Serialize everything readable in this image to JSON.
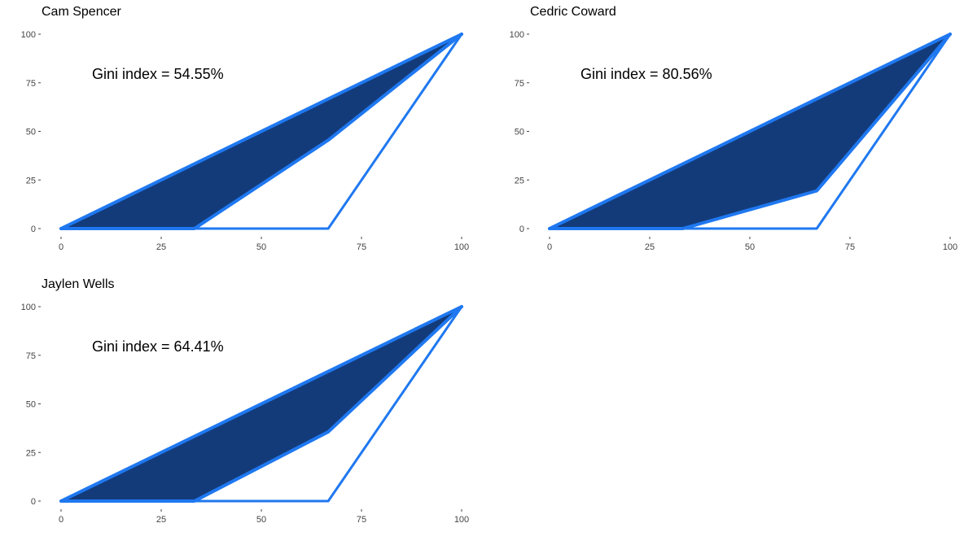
{
  "chart_data": [
    {
      "type": "area",
      "title": "Cam Spencer",
      "annotation": "Gini index = 54.55%",
      "xlim": [
        0,
        100
      ],
      "ylim": [
        0,
        100
      ],
      "x_ticks": [
        0,
        25,
        50,
        75,
        100
      ],
      "y_ticks": [
        0,
        25,
        50,
        75,
        100
      ],
      "grid": false,
      "series": [
        {
          "values": [
            [
              0,
              0
            ],
            [
              33.3,
              0
            ],
            [
              66.7,
              45.5
            ],
            [
              100,
              100
            ]
          ]
        }
      ]
    },
    {
      "type": "area",
      "title": "Cedric Coward",
      "annotation": "Gini index = 80.56%",
      "xlim": [
        0,
        100
      ],
      "ylim": [
        0,
        100
      ],
      "x_ticks": [
        0,
        25,
        50,
        75,
        100
      ],
      "y_ticks": [
        0,
        25,
        50,
        75,
        100
      ],
      "grid": false,
      "series": [
        {
          "values": [
            [
              0,
              0
            ],
            [
              33.3,
              0
            ],
            [
              66.7,
              19.4
            ],
            [
              100,
              100
            ]
          ]
        }
      ]
    },
    {
      "type": "area",
      "title": "Jaylen Wells",
      "annotation": "Gini index = 64.41%",
      "xlim": [
        0,
        100
      ],
      "ylim": [
        0,
        100
      ],
      "x_ticks": [
        0,
        25,
        50,
        75,
        100
      ],
      "y_ticks": [
        0,
        25,
        50,
        75,
        100
      ],
      "grid": false,
      "series": [
        {
          "values": [
            [
              0,
              0
            ],
            [
              33.3,
              0
            ],
            [
              66.7,
              35.6
            ],
            [
              100,
              100
            ]
          ]
        }
      ]
    }
  ],
  "colors": {
    "fill": "#133b7a",
    "line": "#1f78f0",
    "tick": "#444444"
  }
}
